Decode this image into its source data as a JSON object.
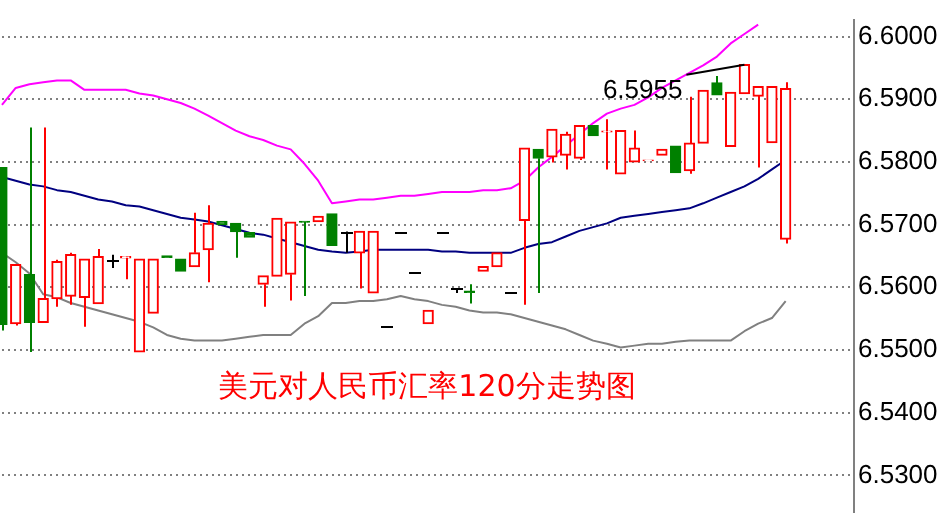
{
  "chart_data": {
    "type": "candlestick",
    "title": "美元对人民币汇率120分走势图",
    "categories": [
      null,
      null,
      null,
      null,
      null,
      null,
      null,
      null,
      null,
      null,
      null,
      null,
      null,
      null,
      null,
      null,
      null,
      null,
      null,
      null,
      null,
      null,
      null,
      null,
      null,
      null,
      null,
      null,
      null,
      null,
      null,
      null,
      null,
      null,
      null,
      null,
      null,
      null,
      null,
      null,
      null,
      null,
      null,
      null,
      null,
      null,
      null,
      null,
      null,
      null,
      null,
      null,
      null,
      null,
      null,
      null,
      null,
      null
    ],
    "ohlc": [
      [
        6.5791,
        6.5791,
        6.5531,
        6.5541
      ],
      [
        6.5542,
        6.5636,
        6.5539,
        6.5636
      ],
      [
        6.562,
        6.5855,
        6.5497,
        6.5544
      ],
      [
        6.5544,
        6.5855,
        6.5544,
        6.5582
      ],
      [
        6.5582,
        6.5644,
        6.5569,
        6.5641
      ],
      [
        6.5586,
        6.5655,
        6.5572,
        6.5652
      ],
      [
        6.5584,
        6.5645,
        6.5537,
        6.5645
      ],
      [
        6.5574,
        6.5661,
        6.5574,
        6.5649
      ],
      [
        6.5643,
        6.5652,
        6.5631,
        6.5643
      ],
      [
        6.5647,
        6.565,
        6.5613,
        6.5649
      ],
      [
        6.5497,
        6.5645,
        6.5497,
        6.5645
      ],
      [
        6.5559,
        6.5645,
        6.5559,
        6.5645
      ],
      [
        6.565,
        6.565,
        6.5648,
        6.5648
      ],
      [
        6.5645,
        6.5645,
        6.5626,
        6.5626
      ],
      [
        6.5633,
        6.5719,
        6.5633,
        6.5655
      ],
      [
        6.566,
        6.5731,
        6.5608,
        6.5702
      ],
      [
        6.5705,
        6.5705,
        6.57,
        6.57
      ],
      [
        6.5702,
        6.5702,
        6.5647,
        6.5689
      ],
      [
        6.5687,
        6.5687,
        6.568,
        6.568
      ],
      [
        6.5605,
        6.5618,
        6.5569,
        6.5618
      ],
      [
        6.5618,
        6.571,
        6.5618,
        6.571
      ],
      [
        6.5621,
        6.5704,
        6.5579,
        6.5704
      ],
      [
        6.5705,
        6.5705,
        6.5586,
        6.5704
      ],
      [
        6.5705,
        6.5713,
        6.5705,
        6.5713
      ],
      [
        6.5717,
        6.5717,
        6.5667,
        6.5667
      ],
      [
        6.5689,
        6.5689,
        6.5655,
        6.5689
      ],
      [
        6.5655,
        6.5689,
        6.5598,
        6.5689
      ],
      [
        6.5591,
        6.5689,
        6.5591,
        6.5689
      ],
      [
        6.5537,
        6.5537,
        6.5537,
        6.5537
      ],
      [
        6.5689,
        6.5689,
        6.5689,
        6.5689
      ],
      [
        6.5625,
        6.5625,
        6.5625,
        6.5625
      ],
      [
        6.5542,
        6.5563,
        6.5542,
        6.5563
      ],
      [
        6.5689,
        6.5689,
        6.5689,
        6.5689
      ],
      [
        6.5598,
        6.5598,
        6.5591,
        6.5598
      ],
      [
        6.5594,
        6.5605,
        6.5574,
        6.5592
      ],
      [
        6.5626,
        6.5633,
        6.5626,
        6.5633
      ],
      [
        6.5633,
        6.5655,
        6.5633,
        6.5655
      ],
      [
        6.5591,
        6.5591,
        6.5591,
        6.5591
      ],
      [
        6.5707,
        6.5822,
        6.5572,
        6.5822
      ],
      [
        6.582,
        6.582,
        6.5591,
        6.5806
      ],
      [
        6.5808,
        6.5852,
        6.5799,
        6.5852
      ],
      [
        6.5811,
        6.5848,
        6.5788,
        6.5844
      ],
      [
        6.5806,
        6.5858,
        6.5803,
        6.5858
      ],
      [
        6.5858,
        6.5858,
        6.5842,
        6.5842
      ],
      [
        6.5848,
        6.5868,
        6.5788,
        6.5849
      ],
      [
        6.5781,
        6.585,
        6.5781,
        6.585
      ],
      [
        6.58,
        6.585,
        6.58,
        6.5822
      ],
      [
        6.5802,
        6.5803,
        6.5802,
        6.5803
      ],
      [
        6.5811,
        6.582,
        6.5811,
        6.582
      ],
      [
        6.5825,
        6.5825,
        6.5783,
        6.5783
      ],
      [
        6.5786,
        6.5904,
        6.5781,
        6.583
      ],
      [
        6.583,
        6.5914,
        6.583,
        6.5914
      ],
      [
        6.5926,
        6.5937,
        6.5907,
        6.5907
      ],
      [
        6.5825,
        6.5911,
        6.5825,
        6.5911
      ],
      [
        6.5909,
        6.5955,
        6.5909,
        6.5955
      ],
      [
        6.5905,
        6.592,
        6.5791,
        6.592
      ],
      [
        6.5831,
        6.592,
        6.5831,
        6.592
      ],
      [
        6.5677,
        6.5927,
        6.567,
        6.5917
      ]
    ],
    "colors": [
      "#008000",
      "#ff0000",
      "#008000",
      "#ff0000",
      "#ff0000",
      "#ff0000",
      "#ff0000",
      "#ff0000",
      "#000000",
      "#ff0000",
      "#ff0000",
      "#ff0000",
      "#008000",
      "#008000",
      "#ff0000",
      "#ff0000",
      "#008000",
      "#008000",
      "#008000",
      "#ff0000",
      "#ff0000",
      "#ff0000",
      "#008000",
      "#ff0000",
      "#008000",
      "#000000",
      "#ff0000",
      "#ff0000",
      "#000000",
      "#000000",
      "#000000",
      "#ff0000",
      "#000000",
      "#000000",
      "#008000",
      "#ff0000",
      "#ff0000",
      "#000000",
      "#ff0000",
      "#008000",
      "#ff0000",
      "#ff0000",
      "#ff0000",
      "#008000",
      "#ff0000",
      "#ff0000",
      "#ff0000",
      "#ff0000",
      "#ff0000",
      "#008000",
      "#ff0000",
      "#ff0000",
      "#008000",
      "#ff0000",
      "#ff0000",
      "#ff0000",
      "#ff0000",
      "#ff0000"
    ],
    "series": [
      {
        "type": "line",
        "color": "#ff00ff",
        "values": [
          6.5891,
          6.5918,
          6.5924,
          6.5927,
          6.593,
          6.593,
          6.5915,
          6.5915,
          6.5915,
          6.5915,
          6.5909,
          6.5906,
          6.59,
          6.5894,
          6.5885,
          6.5874,
          6.5862,
          6.585,
          6.5841,
          6.5835,
          6.5826,
          6.582,
          6.5797,
          6.577,
          6.5734,
          6.5737,
          6.574,
          6.574,
          6.5743,
          6.5746,
          6.5746,
          6.5749,
          6.5752,
          6.5752,
          6.5752,
          6.5755,
          6.5755,
          6.5758,
          6.577,
          6.5791,
          6.5808,
          6.5826,
          6.5844,
          6.5862,
          6.5877,
          6.5885,
          6.5891,
          6.5903,
          6.5918,
          6.593,
          6.5942,
          6.5954,
          6.5968,
          6.5989,
          6.6004,
          6.6019,
          null,
          null
        ]
      },
      {
        "type": "line",
        "color": "#000080",
        "values": [
          6.5776,
          6.577,
          6.5764,
          6.5761,
          6.5755,
          6.5752,
          6.5746,
          6.574,
          6.5737,
          6.5731,
          6.5729,
          6.5723,
          6.5717,
          6.5711,
          6.5708,
          6.5705,
          6.5699,
          6.5693,
          6.5687,
          6.5684,
          6.5678,
          6.5672,
          6.5666,
          6.566,
          6.5657,
          6.5655,
          6.5657,
          6.566,
          6.566,
          6.566,
          6.566,
          6.566,
          6.5657,
          6.5657,
          6.5655,
          6.5655,
          6.5655,
          6.5655,
          6.5663,
          6.5669,
          6.5672,
          6.5681,
          6.569,
          6.5696,
          6.5702,
          6.5711,
          6.5714,
          6.5717,
          6.572,
          6.5723,
          6.5726,
          6.5734,
          6.5743,
          6.5752,
          6.5761,
          6.5773,
          6.5788,
          6.5803
        ]
      },
      {
        "type": "line",
        "color": "#808080",
        "values": [
          6.5655,
          6.564,
          6.5622,
          6.5589,
          6.5584,
          6.5575,
          6.5569,
          6.5563,
          6.5557,
          6.5551,
          6.5545,
          6.5536,
          6.5524,
          6.5518,
          6.5515,
          6.5515,
          6.5515,
          6.5518,
          6.5521,
          6.5524,
          6.5524,
          6.5524,
          6.5542,
          6.5554,
          6.5575,
          6.5575,
          6.5578,
          6.5578,
          6.5581,
          6.5586,
          6.5581,
          6.5578,
          6.5572,
          6.5569,
          6.5563,
          6.556,
          6.556,
          6.5557,
          6.5551,
          6.5545,
          6.5539,
          6.5533,
          6.5524,
          6.5515,
          6.551,
          6.5504,
          6.5507,
          6.551,
          6.551,
          6.5513,
          6.5515,
          6.5515,
          6.5515,
          6.5515,
          6.553,
          6.5542,
          6.5551,
          6.5578
        ]
      }
    ],
    "annotations": [
      "6.5955"
    ],
    "ylim": [
      6.5241,
      6.6027
    ],
    "yticks": [
      {
        "value": 6.53,
        "label": "6.5300"
      },
      {
        "value": 6.54,
        "label": "6.5400"
      },
      {
        "value": 6.55,
        "label": "6.5500"
      },
      {
        "value": 6.56,
        "label": "6.5600"
      },
      {
        "value": 6.57,
        "label": "6.5700"
      },
      {
        "value": 6.58,
        "label": "6.5800"
      },
      {
        "value": 6.59,
        "label": "6.5900"
      },
      {
        "value": 6.6,
        "label": "6.6000"
      }
    ],
    "grid": "y",
    "tick_labels": "y"
  }
}
